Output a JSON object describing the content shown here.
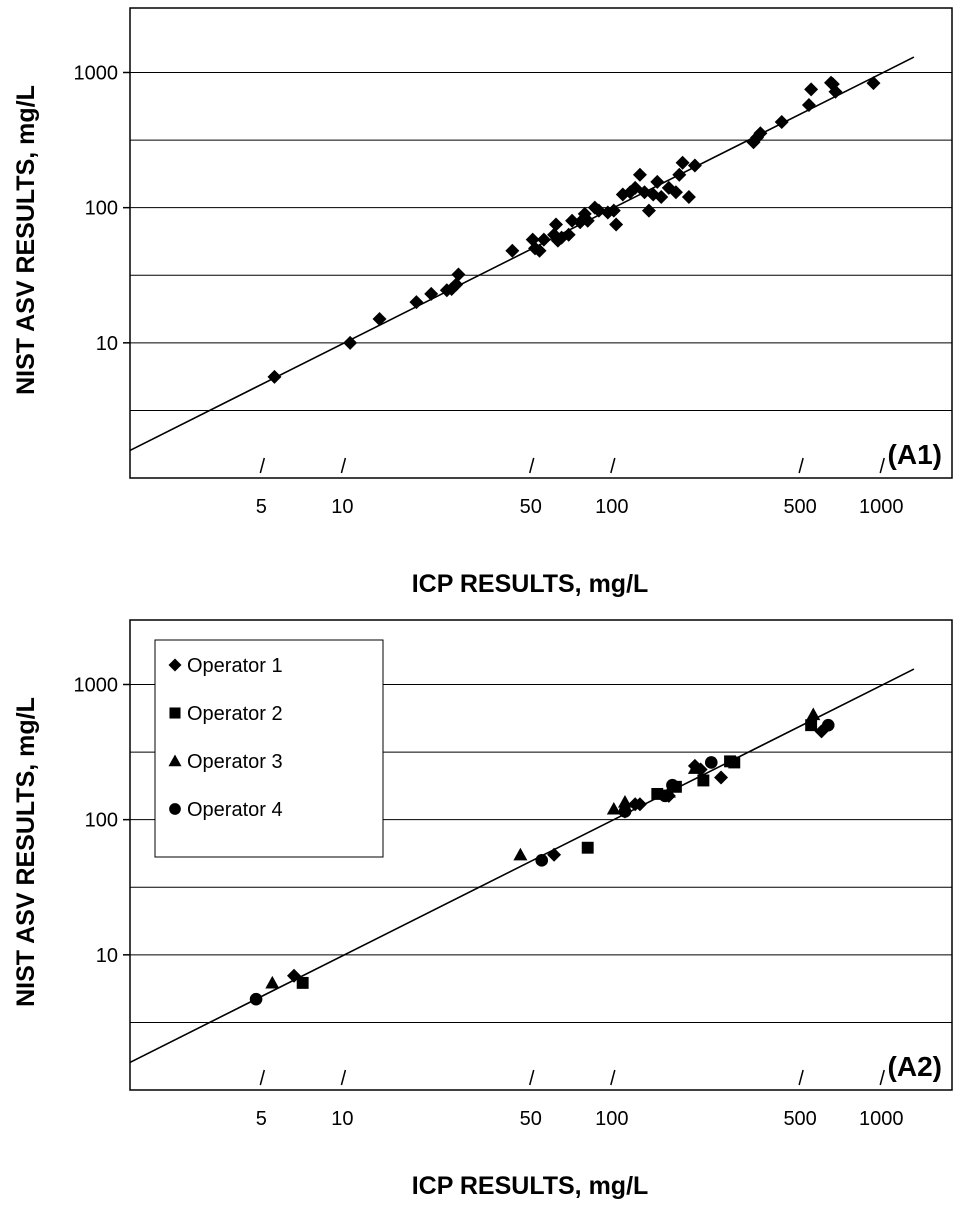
{
  "chart_data": [
    {
      "type": "scatter",
      "panel_label": "(A1)",
      "xlabel": "ICP RESULTS, mg/L",
      "ylabel": "NIST ASV RESULTS, mg/L",
      "x_scale": "log",
      "y_scale": "log",
      "xlim": [
        1.6,
        1800
      ],
      "ylim": [
        1.0,
        3000
      ],
      "x_ticks": [
        5,
        10,
        50,
        100,
        500,
        1000
      ],
      "x_tick_labels": [
        "5",
        "10",
        "50",
        "100",
        "500",
        "1000"
      ],
      "y_ticks": [
        10,
        100,
        1000
      ],
      "y_tick_labels": [
        "10",
        "100",
        "1000"
      ],
      "y_grid_values": [
        3.16,
        10,
        31.6,
        100,
        316,
        1000
      ],
      "reference_line": {
        "from": 1.6,
        "to": 1300,
        "slope": 1
      },
      "series": [
        {
          "marker": "diamond",
          "points": [
            [
              5.5,
              5.6
            ],
            [
              10.5,
              10
            ],
            [
              13.5,
              15
            ],
            [
              18.5,
              20
            ],
            [
              21,
              23
            ],
            [
              24,
              24.5
            ],
            [
              25,
              25
            ],
            [
              26,
              27
            ],
            [
              26.5,
              32
            ],
            [
              42,
              48
            ],
            [
              50,
              58
            ],
            [
              51,
              50
            ],
            [
              53,
              48
            ],
            [
              55,
              58
            ],
            [
              60,
              63
            ],
            [
              61,
              75
            ],
            [
              62,
              57
            ],
            [
              64,
              60
            ],
            [
              68,
              63
            ],
            [
              70,
              80
            ],
            [
              75,
              78
            ],
            [
              78,
              90
            ],
            [
              80,
              80
            ],
            [
              85,
              100
            ],
            [
              88,
              95
            ],
            [
              95,
              92
            ],
            [
              100,
              95
            ],
            [
              102,
              75
            ],
            [
              108,
              125
            ],
            [
              115,
              130
            ],
            [
              120,
              140
            ],
            [
              125,
              175
            ],
            [
              130,
              130
            ],
            [
              135,
              95
            ],
            [
              140,
              125
            ],
            [
              145,
              155
            ],
            [
              150,
              120
            ],
            [
              160,
              140
            ],
            [
              170,
              130
            ],
            [
              175,
              175
            ],
            [
              180,
              215
            ],
            [
              190,
              120
            ],
            [
              200,
              205
            ],
            [
              330,
              305
            ],
            [
              340,
              330
            ],
            [
              350,
              355
            ],
            [
              420,
              430
            ],
            [
              530,
              575
            ],
            [
              540,
              750
            ],
            [
              640,
              840
            ],
            [
              650,
              820
            ],
            [
              665,
              720
            ],
            [
              920,
              835
            ]
          ]
        }
      ]
    },
    {
      "type": "scatter",
      "panel_label": "(A2)",
      "xlabel": "ICP RESULTS, mg/L",
      "ylabel": "NIST ASV RESULTS, mg/L",
      "x_scale": "log",
      "y_scale": "log",
      "xlim": [
        1.6,
        1800
      ],
      "ylim": [
        1.0,
        3000
      ],
      "x_ticks": [
        5,
        10,
        50,
        100,
        500,
        1000
      ],
      "x_tick_labels": [
        "5",
        "10",
        "50",
        "100",
        "500",
        "1000"
      ],
      "y_ticks": [
        10,
        100,
        1000
      ],
      "y_tick_labels": [
        "10",
        "100",
        "1000"
      ],
      "y_grid_values": [
        3.16,
        10,
        31.6,
        100,
        316,
        1000
      ],
      "reference_line": {
        "from": 1.6,
        "to": 1300,
        "slope": 1
      },
      "legend_position": "top-left",
      "series": [
        {
          "name": "Operator 1",
          "marker": "diamond",
          "points": [
            [
              6.5,
              7
            ],
            [
              60,
              55
            ],
            [
              110,
              115
            ],
            [
              120,
              130
            ],
            [
              125,
              130
            ],
            [
              160,
              150
            ],
            [
              200,
              250
            ],
            [
              210,
              235
            ],
            [
              250,
              205
            ],
            [
              590,
              450
            ]
          ]
        },
        {
          "name": "Operator 2",
          "marker": "square",
          "points": [
            [
              7,
              6.2
            ],
            [
              80,
              62
            ],
            [
              145,
              155
            ],
            [
              170,
              175
            ],
            [
              215,
              195
            ],
            [
              270,
              270
            ],
            [
              280,
              265
            ],
            [
              540,
              500
            ]
          ]
        },
        {
          "name": "Operator 3",
          "marker": "triangle",
          "points": [
            [
              5.4,
              6.2
            ],
            [
              45,
              55
            ],
            [
              100,
              120
            ],
            [
              110,
              135
            ],
            [
              160,
              160
            ],
            [
              200,
              240
            ],
            [
              550,
              600
            ]
          ]
        },
        {
          "name": "Operator 4",
          "marker": "circle",
          "points": [
            [
              4.7,
              4.7
            ],
            [
              54,
              50
            ],
            [
              110,
              115
            ],
            [
              155,
              150
            ],
            [
              165,
              180
            ],
            [
              230,
              265
            ],
            [
              625,
              500
            ]
          ]
        }
      ]
    }
  ]
}
